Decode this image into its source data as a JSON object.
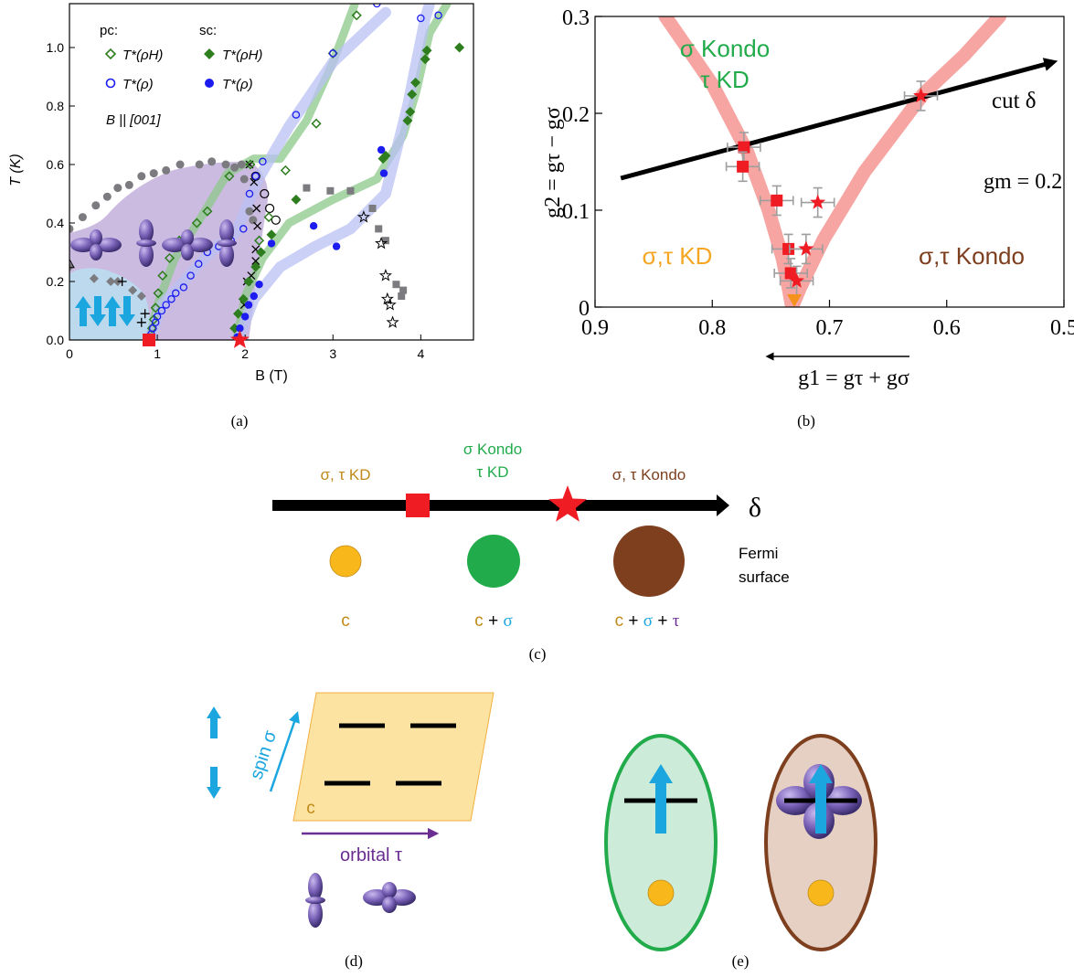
{
  "chart_data": [
    {
      "type": "scatter",
      "panel_label": "(a)",
      "xlabel": "B (T)",
      "ylabel": "T (K)",
      "xlim": [
        0,
        4.6
      ],
      "ylim": [
        0,
        1.15
      ],
      "x_ticks": [
        "0",
        "1",
        "2",
        "3",
        "4"
      ],
      "y_ticks": [
        "0.0",
        "0.2",
        "0.4",
        "0.6",
        "0.8",
        "1.0"
      ],
      "legend": {
        "pc_header": "pc:",
        "sc_header": "sc:",
        "pc_rhoH": "T*(ρH)",
        "pc_rho": "T*(ρ)",
        "sc_rhoH": "T*(ρH)",
        "sc_rho": "T*(ρ)"
      },
      "field_label": "B || [001]",
      "colors": {
        "green": "#2e7d1f",
        "blue": "#1c1cf0",
        "purple_region": "#c6b4de",
        "blue_region": "#bcd9ee",
        "grey": "#7b7b80"
      },
      "series": [
        {
          "name": "pc T*(ρH)",
          "marker": "open-diamond",
          "color": "#2e7d1f",
          "x": [
            0.94,
            0.96,
            0.98,
            1.01,
            1.06,
            1.14,
            1.25,
            1.45,
            1.57,
            1.82,
            2.06,
            2.16,
            2.27,
            2.46,
            2.81,
            3.0,
            3.27
          ],
          "y": [
            0.04,
            0.07,
            0.11,
            0.16,
            0.22,
            0.28,
            0.34,
            0.4,
            0.44,
            0.56,
            0.6,
            0.34,
            0.42,
            0.58,
            0.74,
            0.98,
            1.11
          ]
        },
        {
          "name": "pc T*(ρ)",
          "marker": "open-circle",
          "color": "#1c1cf0",
          "x": [
            0.91,
            0.93,
            0.95,
            0.98,
            1.0,
            1.05,
            1.1,
            1.16,
            1.21,
            1.3,
            1.38,
            1.47,
            1.57,
            1.7,
            1.84,
            1.98,
            2.05,
            2.12,
            2.2,
            2.58,
            3.0,
            3.5,
            4.0,
            4.2
          ],
          "y": [
            0.01,
            0.02,
            0.04,
            0.06,
            0.08,
            0.1,
            0.12,
            0.14,
            0.16,
            0.18,
            0.22,
            0.26,
            0.3,
            0.32,
            0.34,
            0.38,
            0.5,
            0.56,
            0.61,
            0.77,
            0.98,
            1.15,
            1.1,
            1.11
          ]
        },
        {
          "name": "sc T*(ρH)",
          "marker": "filled-diamond",
          "color": "#2e7d1f",
          "x": [
            1.88,
            1.92,
            1.98,
            2.04,
            2.12,
            2.18,
            2.3,
            2.58,
            3.57,
            3.6,
            3.85,
            3.88,
            3.9,
            3.94,
            4.05,
            4.07,
            4.44
          ],
          "y": [
            0.04,
            0.09,
            0.14,
            0.2,
            0.25,
            0.3,
            0.36,
            0.48,
            0.62,
            0.63,
            0.75,
            0.78,
            0.84,
            0.88,
            0.96,
            0.99,
            1.0
          ]
        },
        {
          "name": "sc T*(ρ)",
          "marker": "filled-circle",
          "color": "#1c1cf0",
          "x": [
            1.91,
            1.94,
            2.0,
            2.04,
            2.1,
            2.16,
            2.3,
            2.78,
            3.04,
            3.55,
            3.58
          ],
          "y": [
            0.01,
            0.04,
            0.08,
            0.12,
            0.15,
            0.19,
            0.33,
            0.39,
            0.32,
            0.65,
            0.57
          ]
        }
      ],
      "phase_regions": [
        {
          "name": "purple"
        },
        {
          "name": "blue"
        }
      ],
      "markers": [
        {
          "name": "square",
          "x": 0.89,
          "y": 0.0
        },
        {
          "name": "star",
          "x": 1.94,
          "y": 0.0
        }
      ]
    },
    {
      "type": "scatter",
      "panel_label": "(b)",
      "xlabel": "g1 = gτ + gσ",
      "ylabel": "g2 = gτ − gσ",
      "xlim": [
        0.9,
        0.5
      ],
      "ylim": [
        0,
        0.3
      ],
      "x_ticks": [
        "0.9",
        "0.8",
        "0.7",
        "0.6",
        "0.5"
      ],
      "y_ticks": [
        "0",
        "0.1",
        "0.2",
        "0.3"
      ],
      "region_labels": {
        "top_line1": "σ Kondo",
        "top_line2": "τ KD",
        "left": "σ,τ  KD",
        "right": "σ,τ  Kondo",
        "cut": "cut δ",
        "gm": "gm = 0.2"
      },
      "squares": {
        "x": [
          0.773,
          0.774,
          0.745,
          0.735,
          0.733
        ],
        "y": [
          0.165,
          0.145,
          0.11,
          0.06,
          0.035
        ]
      },
      "stars": {
        "x": [
          0.622,
          0.71,
          0.72,
          0.728
        ],
        "y": [
          0.218,
          0.108,
          0.06,
          0.027
        ]
      },
      "triangle": {
        "x": 0.73,
        "y": 0.0
      },
      "cut_line": {
        "x": [
          0.878,
          0.5
        ],
        "y": [
          0.133,
          0.257
        ]
      },
      "phase_boundary_left": {
        "x": [
          0.84,
          0.8,
          0.77,
          0.752,
          0.74,
          0.735,
          0.732
        ],
        "y": [
          0.3,
          0.23,
          0.16,
          0.1,
          0.05,
          0.02,
          0.0
        ]
      },
      "phase_boundary_right": {
        "x": [
          0.732,
          0.725,
          0.705,
          0.67,
          0.62,
          0.585,
          0.555
        ],
        "y": [
          0.0,
          0.02,
          0.07,
          0.14,
          0.22,
          0.26,
          0.3
        ]
      },
      "colors": {
        "boundary": "#f6a5a2",
        "square": "#ef1c24",
        "star": "#ef1c24",
        "triangle": "#f5921e",
        "error": "#9e9e9e"
      }
    }
  ],
  "panel_c": {
    "label": "(c)",
    "phase_left": "σ, τ KD",
    "phase_mid_line1": "σ Kondo",
    "phase_mid_line2": "τ KD",
    "phase_right": "σ, τ Kondo",
    "axis_symbol": "δ",
    "fermi_line1": "Fermi",
    "fermi_line2": "surface",
    "circle_labels": {
      "left_c": "c",
      "mid_c": "c",
      "mid_plus": " + ",
      "mid_sigma": "σ",
      "right_c": "c",
      "right_plus1": " + ",
      "right_sigma": "σ",
      "right_plus2": " + ",
      "right_tau": "τ"
    },
    "colors": {
      "kd": "#c08a18",
      "kondo_mid": "#22ab4b",
      "kondo_right": "#7d3f1e",
      "c": "#f8b81c",
      "sigma": "#1ca6e0",
      "tau": "#6a2d91"
    }
  },
  "panel_d": {
    "label": "(d)",
    "spin_label": "spin σ",
    "orbital_label": "orbital τ",
    "c_label": "c"
  },
  "panel_e": {
    "label": "(e)"
  }
}
